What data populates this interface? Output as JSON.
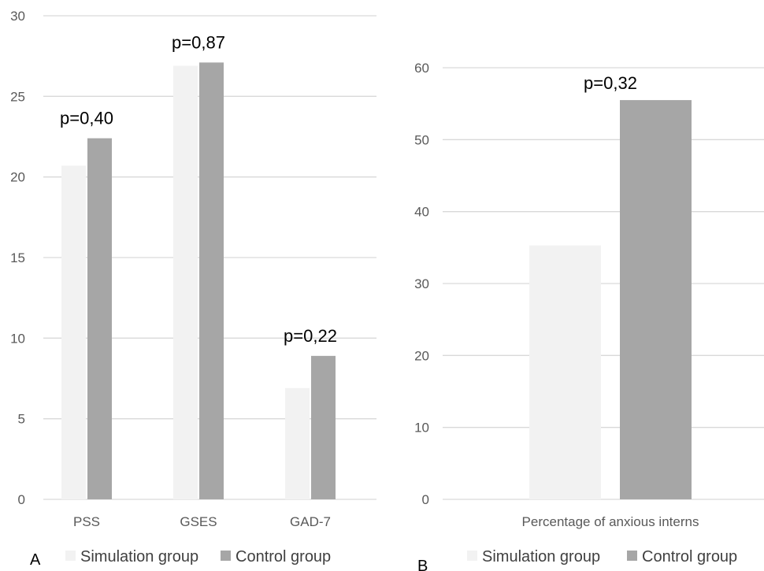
{
  "colors": {
    "simulation": "#f2f2f2",
    "control": "#a6a6a6",
    "grid": "#d9d9d9",
    "axis_text": "#595959"
  },
  "chart_data": [
    {
      "type": "bar",
      "panel_label": "A",
      "categories": [
        "PSS",
        "GSES",
        "GAD-7"
      ],
      "series": [
        {
          "name": "Simulation group",
          "values": [
            20.7,
            26.9,
            6.9
          ]
        },
        {
          "name": "Control group",
          "values": [
            22.4,
            27.1,
            8.9
          ]
        }
      ],
      "annotations": [
        "p=0,40",
        "p=0,87",
        "p=0,22"
      ],
      "ylim": [
        0,
        30
      ],
      "yticks": [
        0,
        5,
        10,
        15,
        20,
        25,
        30
      ],
      "grid": true,
      "legend": "bottom"
    },
    {
      "type": "bar",
      "panel_label": "B",
      "categories": [
        "Percentage of anxious interns"
      ],
      "series": [
        {
          "name": "Simulation group",
          "values": [
            35.3
          ]
        },
        {
          "name": "Control group",
          "values": [
            55.5
          ]
        }
      ],
      "annotations": [
        "p=0,32"
      ],
      "ylim": [
        0,
        60
      ],
      "yticks": [
        0,
        10,
        20,
        30,
        40,
        50,
        60
      ],
      "grid": true,
      "legend": "bottom"
    }
  ]
}
